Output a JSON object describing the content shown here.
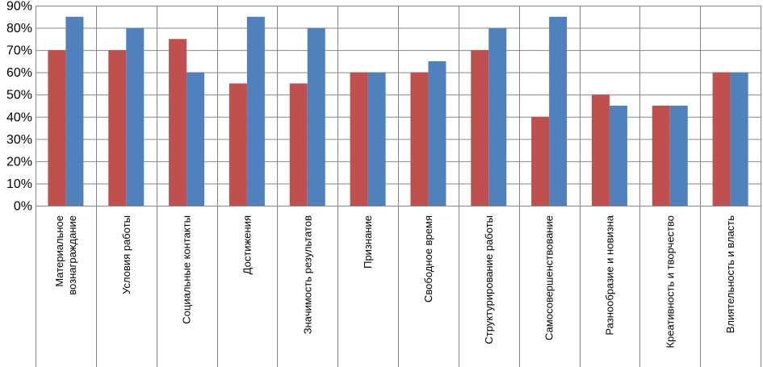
{
  "chart_data": {
    "type": "bar",
    "title": "",
    "xlabel": "",
    "ylabel": "",
    "ylim": [
      0,
      90
    ],
    "y_ticks": [
      0,
      10,
      20,
      30,
      40,
      50,
      60,
      70,
      80,
      90
    ],
    "y_tick_labels": [
      "0%",
      "10%",
      "20%",
      "30%",
      "40%",
      "50%",
      "60%",
      "70%",
      "80%",
      "90%"
    ],
    "grid": true,
    "legend": "none",
    "categories": [
      [
        "Материальное",
        "вознаграждание"
      ],
      [
        "Условия работы"
      ],
      [
        "Социальные контакты"
      ],
      [
        "Достижения"
      ],
      [
        "Значимость результатов"
      ],
      [
        "Признание"
      ],
      [
        "Свободное время"
      ],
      [
        "Структурирование работы"
      ],
      [
        "Самосовершенствование"
      ],
      [
        "Разнообразие и новизна"
      ],
      [
        "Креативность и творчество"
      ],
      [
        "Влиятельность и власть"
      ]
    ],
    "series": [
      {
        "name": "series-1",
        "color": "#C0504D",
        "values": [
          70,
          70,
          75,
          55,
          55,
          60,
          60,
          70,
          40,
          50,
          45,
          60
        ]
      },
      {
        "name": "series-2",
        "color": "#4F81BD",
        "values": [
          85,
          80,
          60,
          85,
          80,
          60,
          65,
          80,
          85,
          45,
          45,
          60
        ]
      }
    ]
  }
}
